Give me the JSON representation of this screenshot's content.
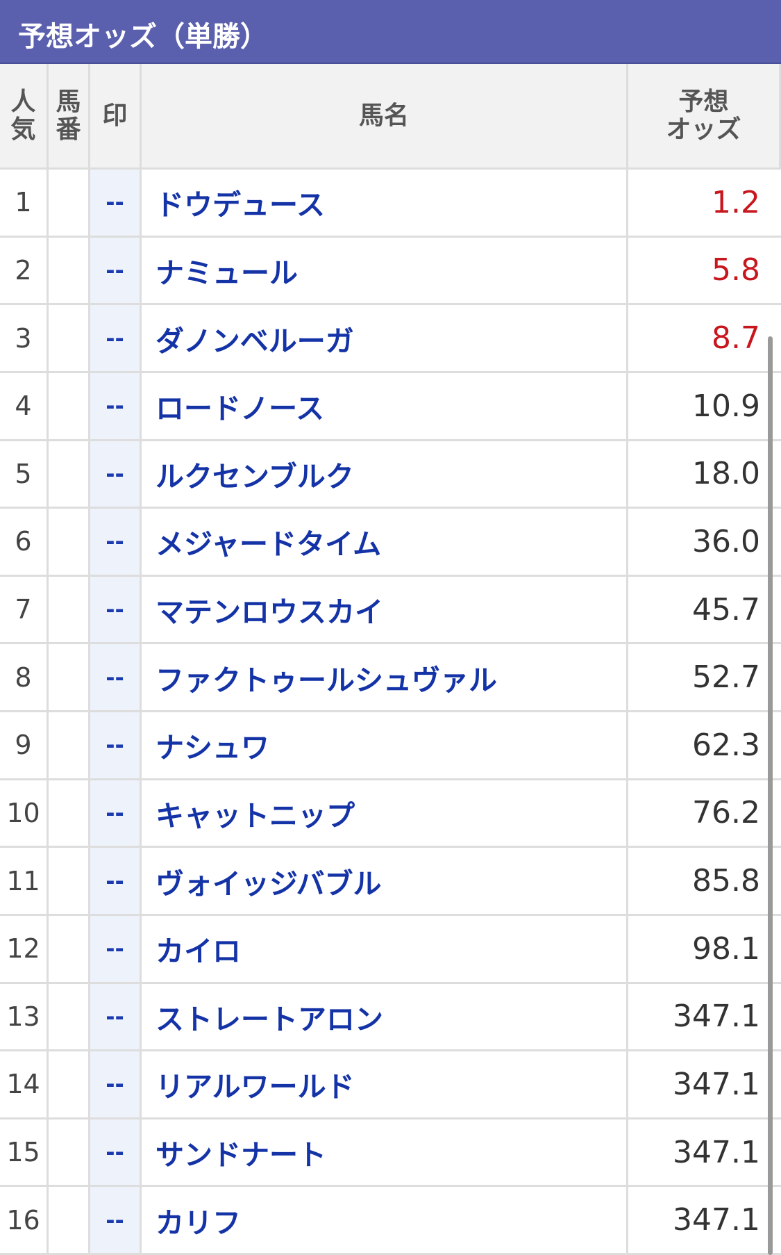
{
  "header": {
    "title": "予想オッズ（単勝）"
  },
  "table": {
    "columns": [
      [
        "人",
        "気"
      ],
      [
        "馬",
        "番"
      ],
      [
        "印"
      ],
      [
        "馬名"
      ],
      [
        "予想",
        "オッズ"
      ]
    ],
    "rows": [
      {
        "rank": 1,
        "mark": "--",
        "name": "ドウデュース",
        "odds": "1.2"
      },
      {
        "rank": 2,
        "mark": "--",
        "name": "ナミュール",
        "odds": "5.8"
      },
      {
        "rank": 3,
        "mark": "--",
        "name": "ダノンベルーガ",
        "odds": "8.7"
      },
      {
        "rank": 4,
        "mark": "--",
        "name": "ロードノース",
        "odds": "10.9"
      },
      {
        "rank": 5,
        "mark": "--",
        "name": "ルクセンブルク",
        "odds": "18.0"
      },
      {
        "rank": 6,
        "mark": "--",
        "name": "メジャードタイム",
        "odds": "36.0"
      },
      {
        "rank": 7,
        "mark": "--",
        "name": "マテンロウスカイ",
        "odds": "45.7"
      },
      {
        "rank": 8,
        "mark": "--",
        "name": "ファクトゥールシュヴァル",
        "odds": "52.7"
      },
      {
        "rank": 9,
        "mark": "--",
        "name": "ナシュワ",
        "odds": "62.3"
      },
      {
        "rank": 10,
        "mark": "--",
        "name": "キャットニップ",
        "odds": "76.2"
      },
      {
        "rank": 11,
        "mark": "--",
        "name": "ヴォイッジバブル",
        "odds": "85.8"
      },
      {
        "rank": 12,
        "mark": "--",
        "name": "カイロ",
        "odds": "98.1"
      },
      {
        "rank": 13,
        "mark": "--",
        "name": "ストレートアロン",
        "odds": "347.1"
      },
      {
        "rank": 14,
        "mark": "--",
        "name": "リアルワールド",
        "odds": "347.1"
      },
      {
        "rank": 15,
        "mark": "--",
        "name": "サンドナート",
        "odds": "347.1"
      },
      {
        "rank": 16,
        "mark": "--",
        "name": "カリフ",
        "odds": "347.1"
      }
    ]
  }
}
